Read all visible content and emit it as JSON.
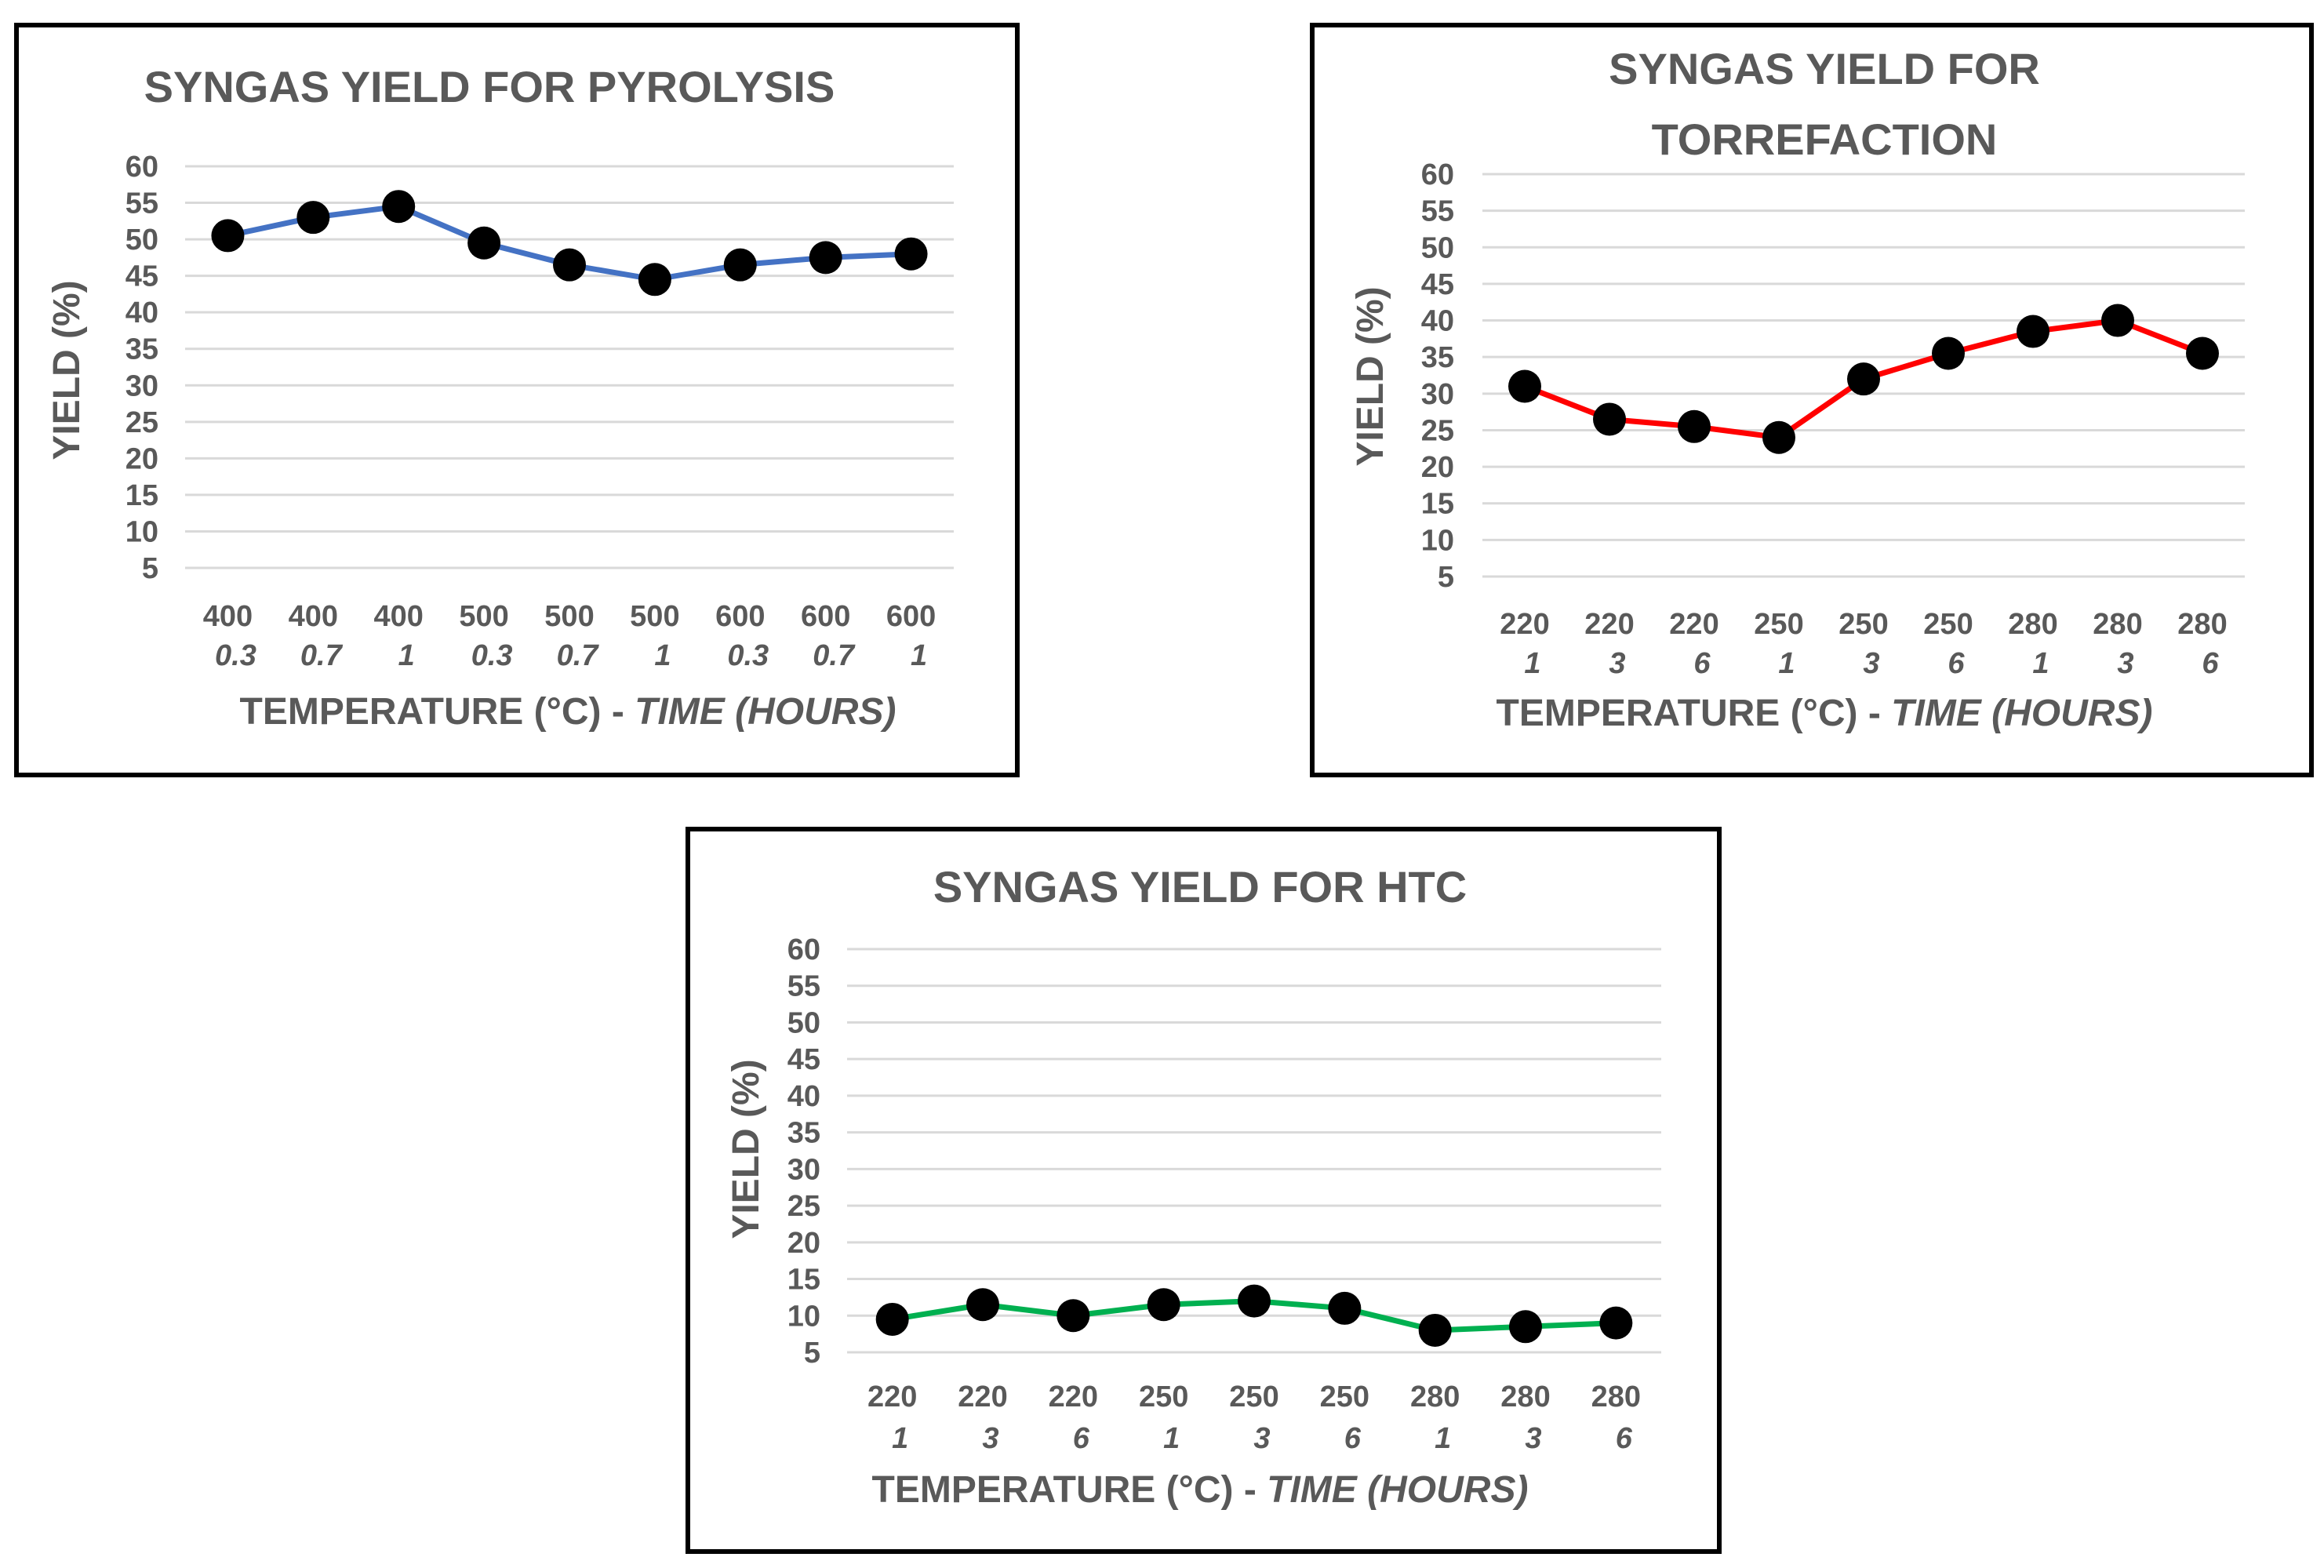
{
  "chart_data": [
    {
      "type": "line",
      "title": [
        "SYNGAS YIELD FOR PYROLYSIS"
      ],
      "ylabel": "YIELD (%)",
      "xlabel": {
        "main": "TEMPERATURE (°C) - ",
        "italic": "TIME (HOURS)"
      },
      "ylim": [
        0,
        60
      ],
      "yticks": [
        60,
        55,
        50,
        45,
        40,
        35,
        30,
        25,
        20,
        15,
        10,
        5
      ],
      "grid": true,
      "categories": [
        {
          "temp": "400",
          "time": "0.3"
        },
        {
          "temp": "400",
          "time": "0.7"
        },
        {
          "temp": "400",
          "time": "1"
        },
        {
          "temp": "500",
          "time": "0.3"
        },
        {
          "temp": "500",
          "time": "0.7"
        },
        {
          "temp": "500",
          "time": "1"
        },
        {
          "temp": "600",
          "time": "0.3"
        },
        {
          "temp": "600",
          "time": "0.7"
        },
        {
          "temp": "600",
          "time": "1"
        }
      ],
      "series": [
        {
          "values": [
            50.5,
            53.0,
            54.5,
            49.5,
            46.5,
            44.5,
            46.5,
            47.5,
            48.0
          ],
          "color": "#4472c4",
          "marker_color": "#000000"
        }
      ]
    },
    {
      "type": "line",
      "title": [
        "SYNGAS YIELD FOR",
        "TORREFACTION"
      ],
      "ylabel": "YIELD (%)",
      "xlabel": {
        "main": "TEMPERATURE (°C) - ",
        "italic": "TIME (HOURS)"
      },
      "ylim": [
        0,
        60
      ],
      "yticks": [
        60,
        55,
        50,
        45,
        40,
        35,
        30,
        25,
        20,
        15,
        10,
        5
      ],
      "grid": true,
      "categories": [
        {
          "temp": "220",
          "time": "1"
        },
        {
          "temp": "220",
          "time": "3"
        },
        {
          "temp": "220",
          "time": "6"
        },
        {
          "temp": "250",
          "time": "1"
        },
        {
          "temp": "250",
          "time": "3"
        },
        {
          "temp": "250",
          "time": "6"
        },
        {
          "temp": "280",
          "time": "1"
        },
        {
          "temp": "280",
          "time": "3"
        },
        {
          "temp": "280",
          "time": "6"
        }
      ],
      "series": [
        {
          "values": [
            31.0,
            26.5,
            25.5,
            24.0,
            32.0,
            35.5,
            38.5,
            40.0,
            35.5
          ],
          "color": "#ff0000",
          "marker_color": "#000000"
        }
      ]
    },
    {
      "type": "line",
      "title": [
        "SYNGAS YIELD FOR HTC"
      ],
      "ylabel": "YIELD (%)",
      "xlabel": {
        "main": "TEMPERATURE (°C) - ",
        "italic": "TIME (HOURS)"
      },
      "ylim": [
        0,
        60
      ],
      "yticks": [
        60,
        55,
        50,
        45,
        40,
        35,
        30,
        25,
        20,
        15,
        10,
        5
      ],
      "grid": true,
      "categories": [
        {
          "temp": "220",
          "time": "1"
        },
        {
          "temp": "220",
          "time": "3"
        },
        {
          "temp": "220",
          "time": "6"
        },
        {
          "temp": "250",
          "time": "1"
        },
        {
          "temp": "250",
          "time": "3"
        },
        {
          "temp": "250",
          "time": "6"
        },
        {
          "temp": "280",
          "time": "1"
        },
        {
          "temp": "280",
          "time": "3"
        },
        {
          "temp": "280",
          "time": "6"
        }
      ],
      "series": [
        {
          "values": [
            9.5,
            11.5,
            10.0,
            11.5,
            12.0,
            11.0,
            8.0,
            8.5,
            9.0
          ],
          "color": "#00b050",
          "marker_color": "#000000"
        }
      ]
    }
  ]
}
